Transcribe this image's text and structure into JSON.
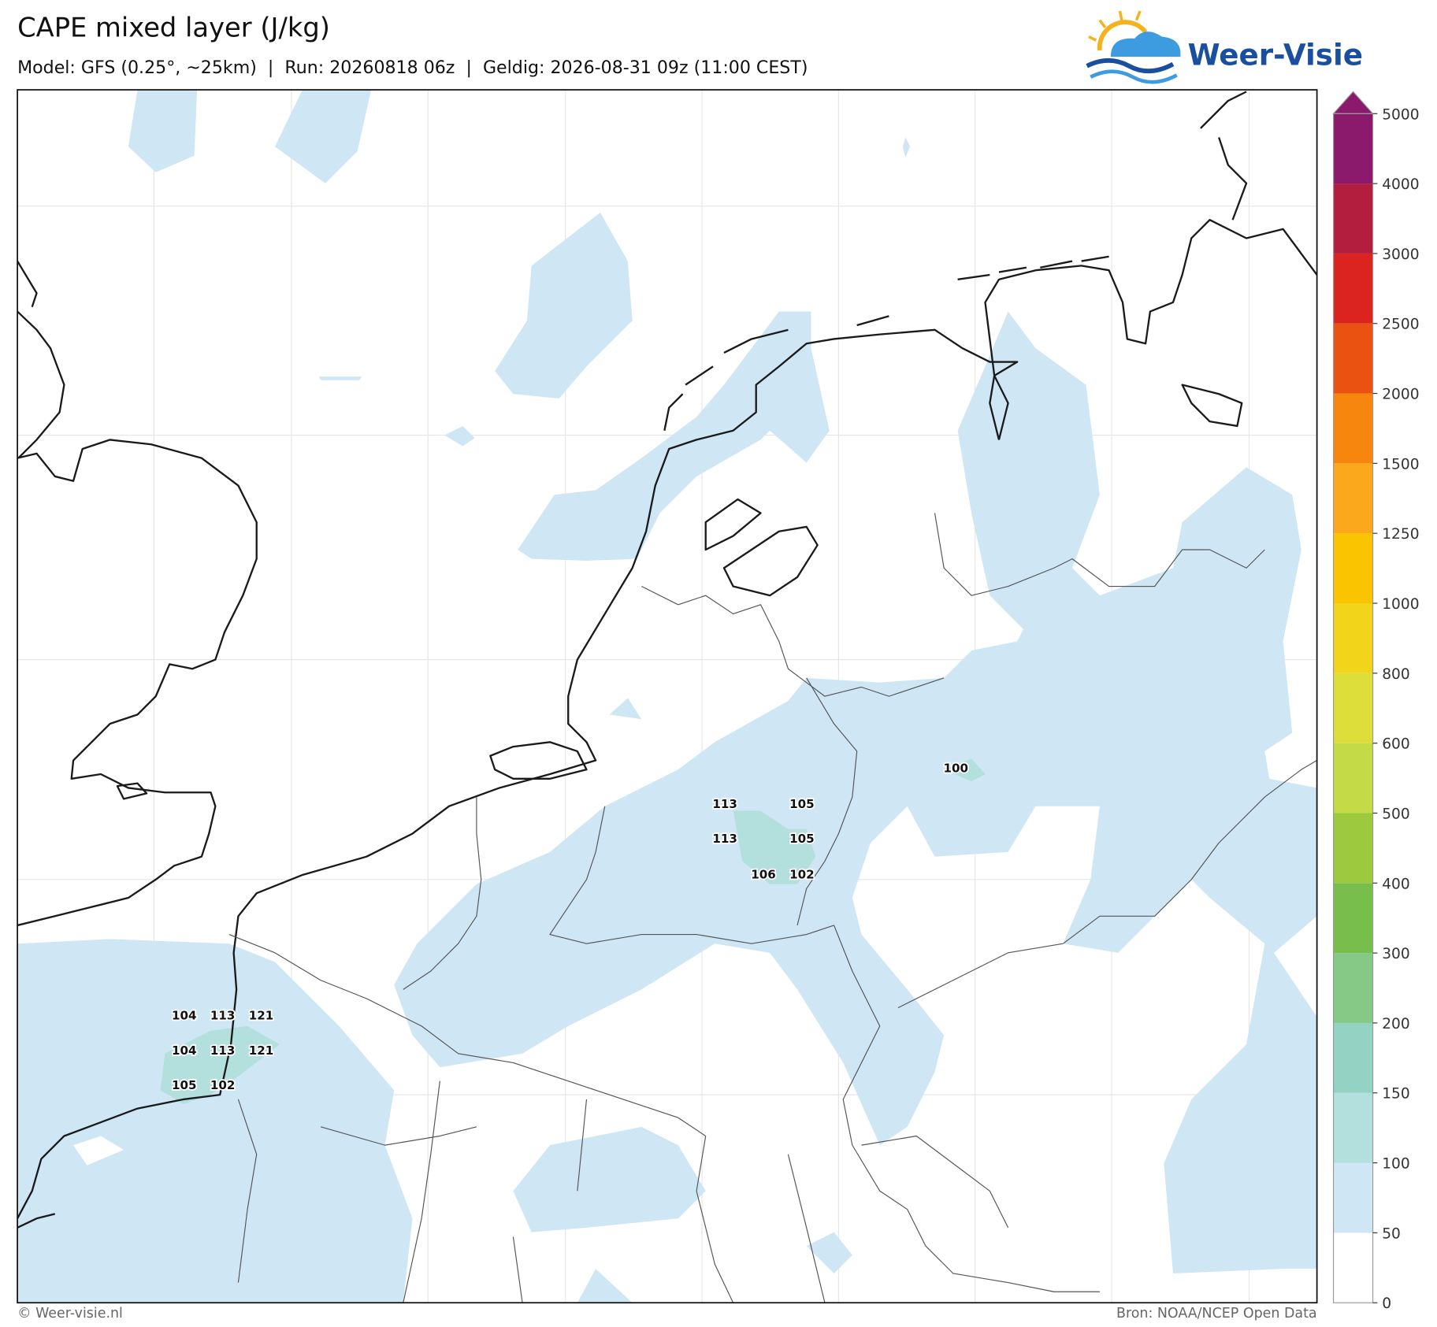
{
  "header": {
    "title": "CAPE mixed layer (J/kg)",
    "subtitle": "Model: GFS (0.25°, ~25km)  |  Run: 20260818 06z  |  Geldig: 2026-08-31 09z (11:00 CEST)",
    "logo": "Weer-Visie"
  },
  "colorbar": {
    "levels": [
      0,
      50,
      100,
      150,
      200,
      300,
      400,
      500,
      600,
      800,
      1000,
      1250,
      1500,
      2000,
      2500,
      3000,
      4000,
      5000
    ],
    "colors": [
      "#ffffff",
      "#cfe6f5",
      "#b3dfdc",
      "#94d2c4",
      "#86c986",
      "#78be4c",
      "#9cc93e",
      "#c4da46",
      "#dede3a",
      "#f2d41a",
      "#fbc400",
      "#fca81c",
      "#f7860e",
      "#ea5212",
      "#db2420",
      "#b31d3e",
      "#8b1a6c"
    ]
  },
  "point_labels": [
    100,
    113,
    105,
    113,
    105,
    106,
    102,
    104,
    113,
    121,
    104,
    113,
    121,
    105,
    102
  ],
  "footer": {
    "left": "© Weer-visie.nl",
    "right": "Bron: NOAA/NCEP Open Data"
  }
}
